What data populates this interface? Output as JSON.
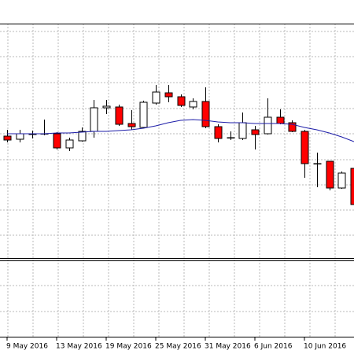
{
  "chart_data": {
    "type": "candlestick",
    "categories": [
      "9 May 2016",
      null,
      null,
      null,
      "13 May 2016",
      null,
      null,
      null,
      "19 May 2016",
      null,
      null,
      null,
      "25 May 2016",
      null,
      null,
      null,
      "31 May 2016",
      null,
      null,
      null,
      "6 Jun 2016",
      null,
      null,
      null,
      "10 Jun 2016",
      null,
      null,
      null,
      null
    ],
    "open": [
      157,
      153,
      159,
      160,
      160,
      142,
      151,
      163,
      193,
      194,
      173,
      168,
      199,
      212,
      207,
      194,
      201,
      169,
      155,
      154,
      165,
      160,
      181,
      174,
      163,
      122,
      125,
      91,
      116
    ],
    "high": [
      165,
      165,
      164,
      178,
      162,
      155,
      168,
      203,
      203,
      197,
      190,
      202,
      222,
      222,
      210,
      205,
      219,
      172,
      163,
      187,
      170,
      205,
      191,
      177,
      165,
      136,
      125,
      112,
      120
    ],
    "low": [
      149,
      149,
      154,
      158,
      140,
      138,
      150,
      155,
      185,
      170,
      165,
      167,
      197,
      200,
      194,
      191,
      167,
      149,
      152,
      152,
      140,
      159,
      172,
      162,
      104,
      92,
      88,
      90,
      60
    ],
    "close": [
      152,
      160,
      160,
      160,
      142,
      152,
      163,
      193,
      195,
      172,
      169,
      200,
      213,
      207,
      196,
      201,
      169,
      154,
      155,
      174,
      159,
      181,
      173,
      163,
      122,
      122,
      91,
      110,
      70
    ],
    "up_color": "#ffffff",
    "down_color": "#ff0000",
    "ma_values": [
      160,
      160,
      160,
      160,
      161,
      161,
      162,
      163,
      163,
      164,
      165,
      167,
      170,
      174,
      177,
      178,
      177,
      175,
      174,
      174,
      173,
      173,
      173,
      172,
      168,
      165,
      161,
      156,
      150
    ],
    "ma_color": "#1c1ca8",
    "ylim": [
      2,
      300
    ]
  }
}
